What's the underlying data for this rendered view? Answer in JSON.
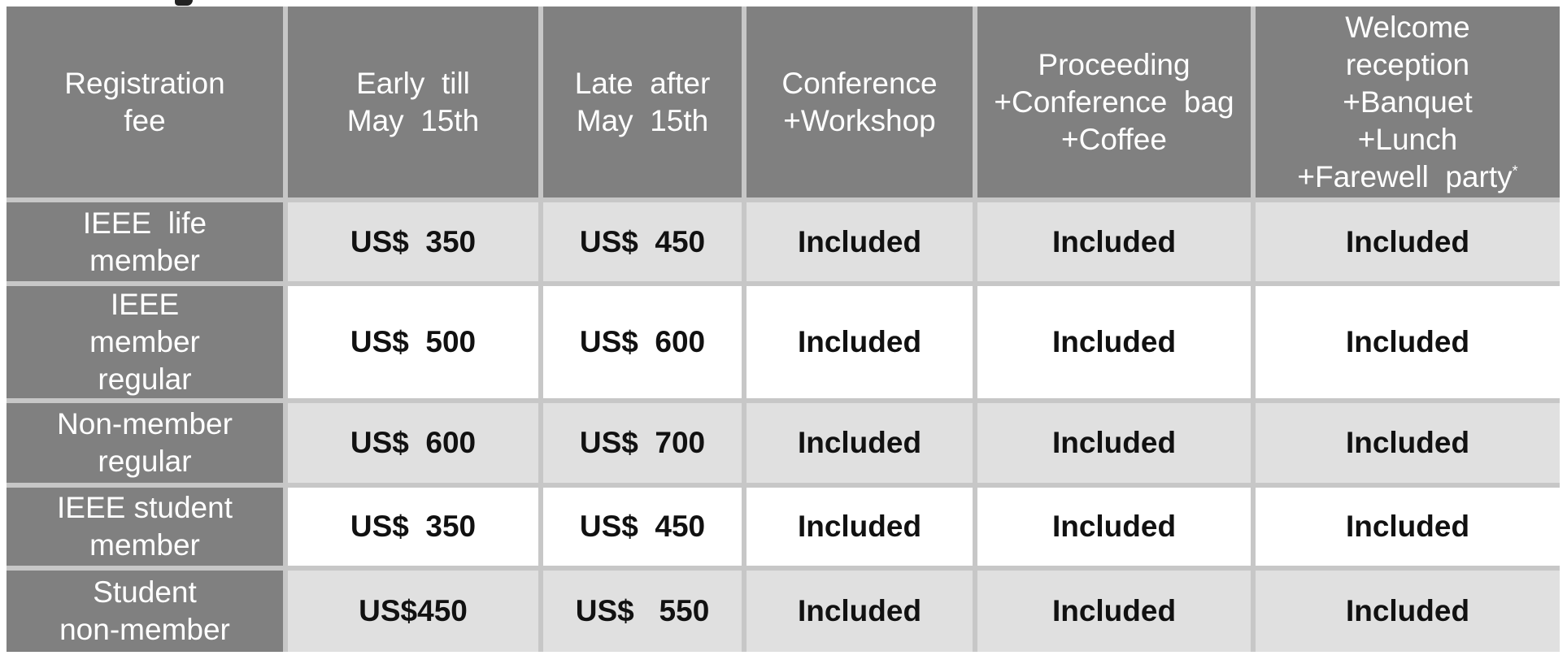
{
  "table": {
    "header": {
      "c0": [
        "Registration",
        "fee"
      ],
      "c1": [
        "Early  till",
        "May  15th"
      ],
      "c2": [
        "Late  after",
        "May  15th"
      ],
      "c3": [
        "Conference",
        "+Workshop"
      ],
      "c4": [
        "Proceeding",
        "+Conference  bag",
        "+Coffee"
      ],
      "c5": [
        "Welcome",
        "reception",
        "+Banquet",
        "+Lunch",
        "+Farewell  party"
      ],
      "c5_mark": "*"
    },
    "rows": [
      {
        "label": [
          "IEEE  life",
          "member"
        ],
        "early": "US$  350",
        "late": "US$  450",
        "conf": "Included",
        "proc": "Included",
        "welcome": "Included"
      },
      {
        "label": [
          "IEEE",
          "member",
          "regular"
        ],
        "early": "US$  500",
        "late": "US$  600",
        "conf": "Included",
        "proc": "Included",
        "welcome": "Included"
      },
      {
        "label": [
          "Non-member",
          "regular"
        ],
        "early": "US$  600",
        "late": "US$  700",
        "conf": "Included",
        "proc": "Included",
        "welcome": "Included"
      },
      {
        "label": [
          "IEEE student",
          "member"
        ],
        "early": "US$  350",
        "late": "US$  450",
        "conf": "Included",
        "proc": "Included",
        "welcome": "Included"
      },
      {
        "label": [
          "Student",
          "non-member"
        ],
        "early": "US$450",
        "late": "US$   550",
        "conf": "Included",
        "proc": "Included",
        "welcome": "Included"
      }
    ]
  },
  "colors": {
    "header_bg": "#808080",
    "shaded_row": "#e0e0e0",
    "plain_row": "#ffffff",
    "grid": "#c7c7c7"
  }
}
